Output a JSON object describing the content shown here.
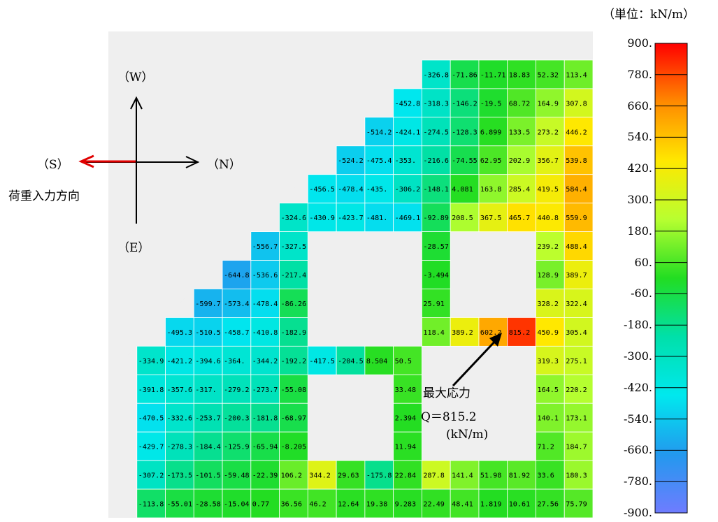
{
  "unit_label": "（単位：kN/m）",
  "orientation": {
    "west": "（W）",
    "east": "（E）",
    "south": "（S）",
    "north": "（N）",
    "load_direction": "荷重入力方向"
  },
  "max_annotation": {
    "title": "最大応力",
    "value": "Q＝815.2",
    "unit": "(kN/m)"
  },
  "color_scale": {
    "min": -900,
    "max": 900,
    "ticks": [
      "900.",
      "780.",
      "660.",
      "540.",
      "420.",
      "300.",
      "180.",
      "60.",
      "-60.",
      "-180.",
      "-300.",
      "-420.",
      "-540.",
      "-660.",
      "-780.",
      "-900."
    ],
    "colors": [
      "#ff0000",
      "#ff8a00",
      "#ffe800",
      "#b8ff30",
      "#22dd22",
      "#00e0aa",
      "#00e8ee",
      "#2299ee",
      "#6f7cff"
    ]
  },
  "panel_values": [
    [
      null,
      null,
      null,
      null,
      null,
      null,
      null,
      null,
      null,
      null,
      null,
      null,
      null,
      null,
      null,
      null,
      null
    ],
    [
      null,
      null,
      null,
      null,
      null,
      null,
      null,
      null,
      null,
      null,
      null,
      "-326.8",
      "-71.86",
      "-11.71",
      "18.83",
      "52.32",
      "113.4"
    ],
    [
      null,
      null,
      null,
      null,
      null,
      null,
      null,
      null,
      null,
      null,
      "-452.8",
      "-318.3",
      "-146.2",
      "-19.5",
      "68.72",
      "164.9",
      "307.8"
    ],
    [
      null,
      null,
      null,
      null,
      null,
      null,
      null,
      null,
      null,
      "-514.2",
      "-424.1",
      "-274.5",
      "-128.3",
      "6.899",
      "133.5",
      "273.2",
      "446.2"
    ],
    [
      null,
      null,
      null,
      null,
      null,
      null,
      null,
      null,
      "-524.2",
      "-475.4",
      "-353.",
      "-216.6",
      "-74.55",
      "62.95",
      "202.9",
      "356.7",
      "539.8"
    ],
    [
      null,
      null,
      null,
      null,
      null,
      null,
      null,
      "-456.5",
      "-478.4",
      "-435.",
      "-306.2",
      "-148.1",
      "4.081",
      "163.8",
      "285.4",
      "419.5",
      "584.4"
    ],
    [
      null,
      null,
      null,
      null,
      null,
      null,
      "-324.6",
      "-430.9",
      "-423.7",
      "-481.",
      "-469.1",
      "-92.89",
      "208.5",
      "367.5",
      "465.7",
      "440.8",
      "559.9"
    ],
    [
      null,
      null,
      null,
      null,
      null,
      "-556.7",
      "-327.5",
      null,
      null,
      null,
      null,
      "-28.57",
      null,
      null,
      null,
      "239.2",
      "488.4"
    ],
    [
      null,
      null,
      null,
      null,
      "-644.8",
      "-536.6",
      "-217.4",
      null,
      null,
      null,
      null,
      "-3.494",
      null,
      null,
      null,
      "128.9",
      "389.7"
    ],
    [
      null,
      null,
      null,
      "-599.7",
      "-573.4",
      "-478.4",
      "-86.26",
      null,
      null,
      null,
      null,
      "25.91",
      null,
      null,
      null,
      "328.2",
      "322.4"
    ],
    [
      null,
      null,
      "-495.3",
      "-510.5",
      "-458.7",
      "-410.8",
      "-182.9",
      null,
      null,
      null,
      null,
      "118.4",
      "389.2",
      "602.2",
      "815.2",
      "450.9",
      "305.4"
    ],
    [
      null,
      "-334.9",
      "-421.2",
      "-394.6",
      "-364.",
      "-344.2",
      "-192.2",
      "-417.5",
      "-204.5",
      "8.504",
      "50.5",
      null,
      null,
      null,
      null,
      "319.3",
      "275.1"
    ],
    [
      null,
      "-391.8",
      "-357.6",
      "-317.",
      "-279.2",
      "-273.7",
      "-55.08",
      null,
      null,
      null,
      "33.48",
      null,
      null,
      null,
      null,
      "164.5",
      "220.2"
    ],
    [
      null,
      "-470.5",
      "-332.6",
      "-253.7",
      "-200.3",
      "-181.8",
      "-68.97",
      null,
      null,
      null,
      "2.394",
      null,
      null,
      null,
      null,
      "140.1",
      "173.1"
    ],
    [
      null,
      "-429.7",
      "-278.3",
      "-184.4",
      "-125.9",
      "-65.94",
      "-8.205",
      null,
      null,
      null,
      "11.94",
      null,
      null,
      null,
      null,
      "71.2",
      "184.7"
    ],
    [
      null,
      "-307.2",
      "-173.5",
      "-101.5",
      "-59.48",
      "-22.39",
      "106.2",
      "344.2",
      "29.63",
      "-175.8",
      "22.84",
      "287.8",
      "141.4",
      "51.98",
      "81.92",
      "33.6",
      "180.3"
    ],
    [
      null,
      "-113.8",
      "-55.01",
      "-28.58",
      "-15.04",
      "0.77",
      "36.56",
      "46.2",
      "12.64",
      "19.38",
      "9.283",
      "22.49",
      "48.41",
      "1.819",
      "10.61",
      "27.56",
      "75.79"
    ]
  ]
}
